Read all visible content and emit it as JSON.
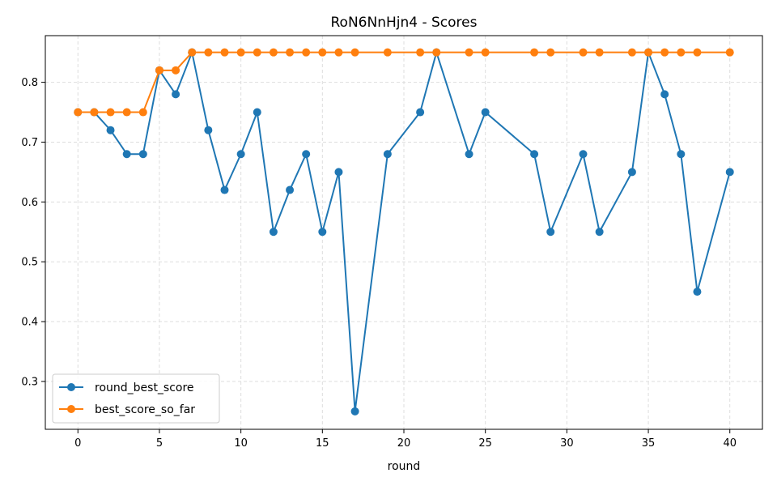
{
  "chart_data": {
    "type": "line",
    "title": "RoN6NnHjn4 - Scores",
    "xlabel": "round",
    "ylabel": "",
    "xlim": [
      -2,
      42
    ],
    "ylim": [
      0.22,
      0.878
    ],
    "xticks": [
      0,
      5,
      10,
      15,
      20,
      25,
      30,
      35,
      40
    ],
    "yticks": [
      0.3,
      0.4,
      0.5,
      0.6,
      0.7,
      0.8
    ],
    "xtick_labels": [
      "0",
      "5",
      "10",
      "15",
      "20",
      "25",
      "30",
      "35",
      "40"
    ],
    "ytick_labels": [
      "0.3",
      "0.4",
      "0.5",
      "0.6",
      "0.7",
      "0.8"
    ],
    "grid": true,
    "legend_position": "lower-left",
    "x": [
      0,
      1,
      2,
      3,
      4,
      5,
      6,
      7,
      8,
      9,
      10,
      11,
      12,
      13,
      14,
      15,
      16,
      17,
      19,
      21,
      22,
      24,
      25,
      28,
      29,
      31,
      32,
      34,
      35,
      36,
      37,
      38,
      40
    ],
    "series": [
      {
        "name": "round_best_score",
        "color": "#1f77b4",
        "values": [
          0.75,
          0.75,
          0.72,
          0.68,
          0.68,
          0.82,
          0.78,
          0.85,
          0.72,
          0.62,
          0.68,
          0.75,
          0.55,
          0.62,
          0.68,
          0.55,
          0.65,
          0.25,
          0.68,
          0.75,
          0.85,
          0.68,
          0.75,
          0.68,
          0.55,
          0.68,
          0.55,
          0.65,
          0.85,
          0.78,
          0.68,
          0.45,
          0.65
        ]
      },
      {
        "name": "best_score_so_far",
        "color": "#ff7f0e",
        "values": [
          0.75,
          0.75,
          0.75,
          0.75,
          0.75,
          0.82,
          0.82,
          0.85,
          0.85,
          0.85,
          0.85,
          0.85,
          0.85,
          0.85,
          0.85,
          0.85,
          0.85,
          0.85,
          0.85,
          0.85,
          0.85,
          0.85,
          0.85,
          0.85,
          0.85,
          0.85,
          0.85,
          0.85,
          0.85,
          0.85,
          0.85,
          0.85,
          0.85
        ]
      }
    ]
  }
}
